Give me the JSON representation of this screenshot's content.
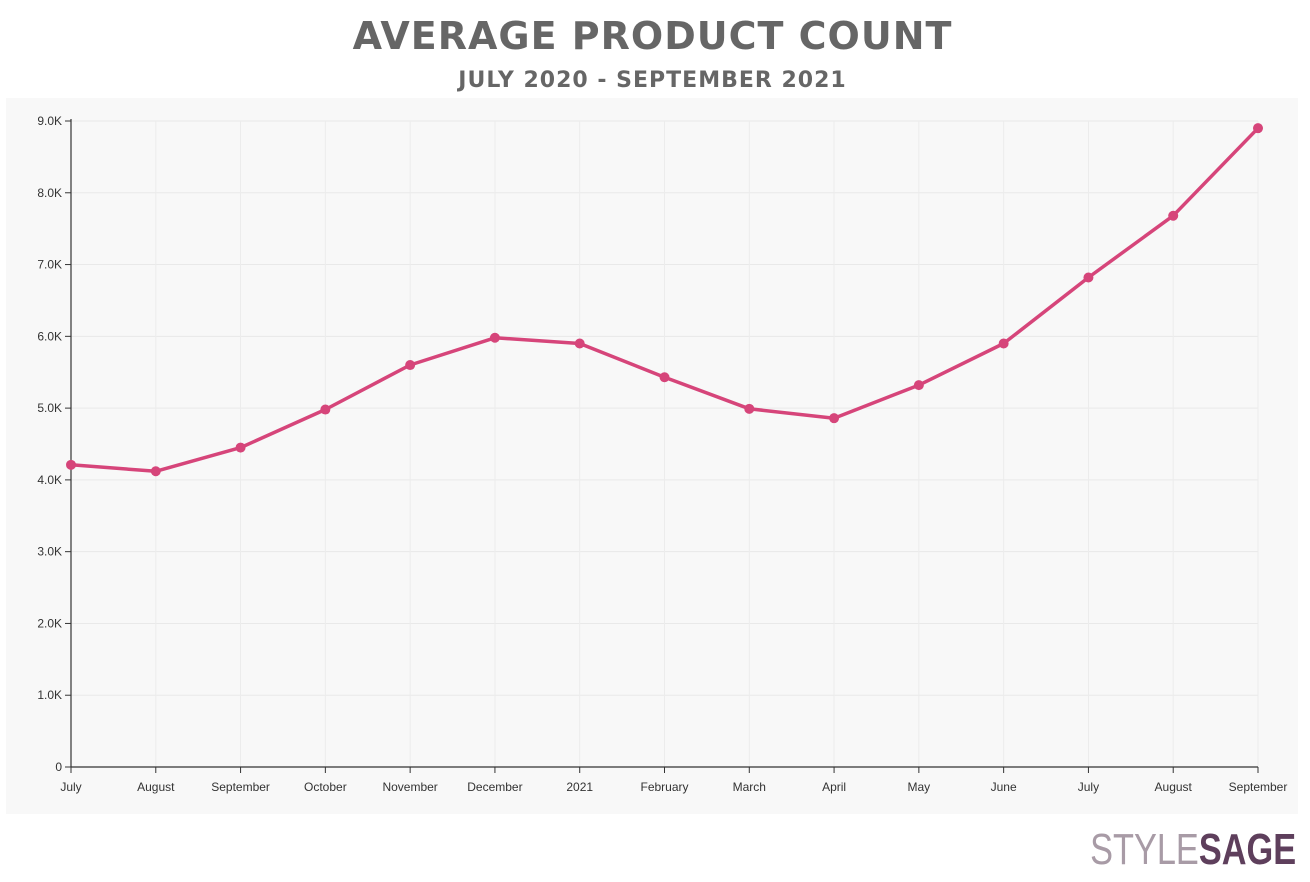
{
  "header": {
    "title": "AVERAGE PRODUCT COUNT",
    "subtitle": "JULY 2020 - SEPTEMBER 2021"
  },
  "logo": {
    "part1": "STYLE",
    "part2": "SAGE",
    "color1": "#a89ba6",
    "color2": "#5e3f5c"
  },
  "chart_data": {
    "type": "line",
    "title": "AVERAGE PRODUCT COUNT",
    "subtitle": "JULY 2020 - SEPTEMBER 2021",
    "xlabel": "",
    "ylabel": "",
    "categories": [
      "July",
      "August",
      "September",
      "October",
      "November",
      "December",
      "2021",
      "February",
      "March",
      "April",
      "May",
      "June",
      "July",
      "August",
      "September"
    ],
    "series": [
      {
        "values": [
          4210,
          4120,
          4450,
          4980,
          5600,
          5980,
          5900,
          5430,
          4990,
          4860,
          5320,
          5900,
          6820,
          7680,
          8900
        ],
        "color": "#d6457a"
      }
    ],
    "ylim": [
      0,
      9000
    ],
    "yticks": [
      0,
      1000,
      2000,
      3000,
      4000,
      5000,
      6000,
      7000,
      8000,
      9000
    ],
    "ytick_labels": [
      "0",
      "1.0K",
      "2.0K",
      "3.0K",
      "4.0K",
      "5.0K",
      "6.0K",
      "7.0K",
      "8.0K",
      "9.0K"
    ],
    "grid": true,
    "legend": "none",
    "markers": true
  }
}
